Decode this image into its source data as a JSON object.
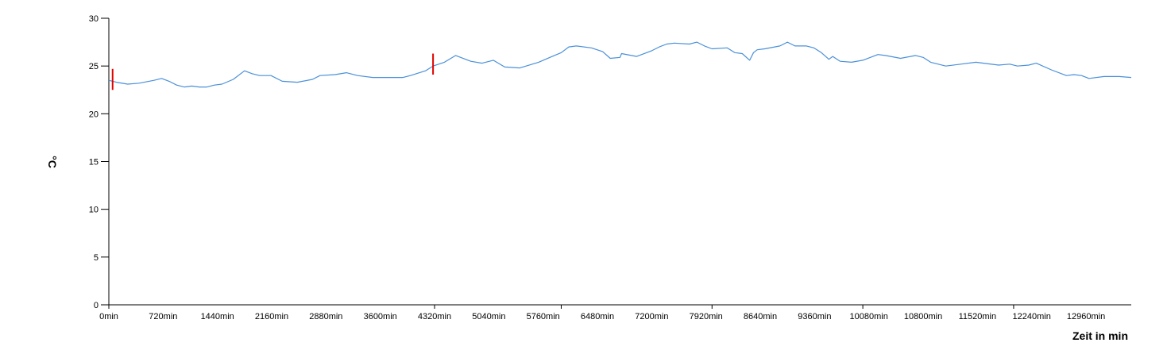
{
  "chart_data": {
    "type": "line",
    "title": "",
    "xlabel": "Zeit in min",
    "ylabel": "°C",
    "xlim": [
      0,
      13560
    ],
    "ylim": [
      0,
      30
    ],
    "x_ticks": [
      0,
      720,
      1440,
      2160,
      2880,
      3600,
      4320,
      5040,
      5760,
      6480,
      7200,
      7920,
      8640,
      9360,
      10080,
      10800,
      11520,
      12240,
      12960
    ],
    "x_tick_labels": [
      "0min",
      "720min",
      "1440min",
      "2160min",
      "2880min",
      "3600min",
      "4320min",
      "5040min",
      "5760min",
      "6480min",
      "7200min",
      "7920min",
      "8640min",
      "9360min",
      "10080min",
      "10800min",
      "11520min",
      "12240min",
      "12960min"
    ],
    "x_major_ticks": [
      0,
      4320,
      6000,
      8000,
      10000,
      12000
    ],
    "y_ticks": [
      0,
      5,
      10,
      15,
      20,
      25,
      30
    ],
    "y_tick_labels": [
      "0",
      "5",
      "10",
      "15",
      "20",
      "25",
      "30"
    ],
    "grid": false,
    "legend": "none",
    "line_color": "#4a90d9",
    "marker_color": "#e00000",
    "markers": [
      {
        "x": 50,
        "y_low": 22.5,
        "y_high": 24.7
      },
      {
        "x": 4300,
        "y_low": 24.1,
        "y_high": 26.3
      }
    ],
    "series": [
      {
        "x": [
          0,
          100,
          250,
          400,
          600,
          700,
          800,
          900,
          1000,
          1100,
          1200,
          1300,
          1400,
          1500,
          1650,
          1800,
          1900,
          2000,
          2150,
          2300,
          2500,
          2700,
          2800,
          3000,
          3150,
          3300,
          3500,
          3700,
          3900,
          4000,
          4200,
          4300,
          4450,
          4600,
          4800,
          4950,
          5100,
          5250,
          5450,
          5700,
          5850,
          6000,
          6100,
          6200,
          6400,
          6550,
          6650,
          6780,
          6800,
          7000,
          7200,
          7300,
          7400,
          7500,
          7700,
          7800,
          7900,
          8000,
          8200,
          8300,
          8400,
          8500,
          8550,
          8600,
          8700,
          8900,
          9000,
          9100,
          9250,
          9350,
          9450,
          9550,
          9600,
          9700,
          9850,
          10000,
          10200,
          10300,
          10500,
          10700,
          10800,
          10900,
          11100,
          11300,
          11500,
          11600,
          11800,
          11950,
          12050,
          12200,
          12300,
          12500,
          12700,
          12800,
          12900,
          13000,
          13200,
          13400,
          13560
        ],
        "y": [
          23.5,
          23.3,
          23.1,
          23.2,
          23.5,
          23.7,
          23.4,
          23.0,
          22.8,
          22.9,
          22.8,
          22.8,
          23.0,
          23.1,
          23.6,
          24.5,
          24.2,
          24.0,
          24.0,
          23.4,
          23.3,
          23.6,
          24.0,
          24.1,
          24.3,
          24.0,
          23.8,
          23.8,
          23.8,
          24.0,
          24.5,
          25.0,
          25.4,
          26.1,
          25.5,
          25.3,
          25.6,
          24.9,
          24.8,
          25.4,
          25.9,
          26.4,
          27.0,
          27.1,
          26.9,
          26.5,
          25.8,
          25.9,
          26.3,
          26.0,
          26.6,
          27.0,
          27.3,
          27.4,
          27.3,
          27.5,
          27.1,
          26.8,
          26.9,
          26.4,
          26.3,
          25.6,
          26.4,
          26.7,
          26.8,
          27.1,
          27.5,
          27.1,
          27.1,
          26.9,
          26.4,
          25.7,
          26.0,
          25.5,
          25.4,
          25.6,
          26.2,
          26.1,
          25.8,
          26.1,
          25.9,
          25.4,
          25.0,
          25.2,
          25.4,
          25.3,
          25.1,
          25.2,
          25.0,
          25.1,
          25.3,
          24.6,
          24.0,
          24.1,
          24.0,
          23.7,
          23.9,
          23.9,
          23.8
        ]
      }
    ]
  }
}
